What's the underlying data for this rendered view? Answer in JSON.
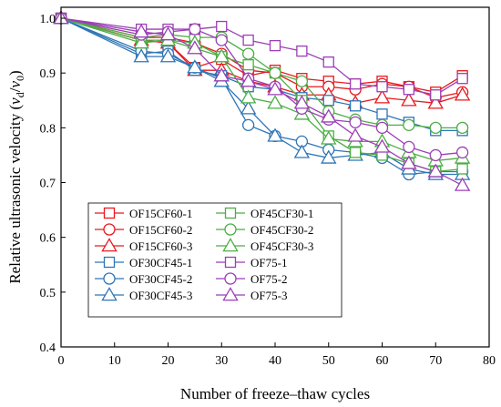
{
  "chart_data": {
    "type": "line",
    "xlabel": "Number of freeze–thaw cycles",
    "ylabel_parts": [
      "Relative ultrasonic velocity (",
      "v",
      "d",
      "/",
      "v",
      "0",
      ")"
    ],
    "xlim": [
      0,
      80
    ],
    "ylim": [
      0.4,
      1.02
    ],
    "xticks": [
      0,
      10,
      20,
      30,
      40,
      50,
      60,
      70,
      80
    ],
    "yticks": [
      0.4,
      0.5,
      0.6,
      0.7,
      0.8,
      0.9,
      1.0
    ],
    "ytick_labels": [
      "0.4",
      "0.5",
      "0.6",
      "0.7",
      "0.8",
      "0.9",
      "1.0"
    ],
    "grid": false,
    "legend_position": "bottom-left",
    "x": [
      0,
      15,
      20,
      25,
      30,
      35,
      40,
      45,
      50,
      55,
      60,
      65,
      70,
      75
    ],
    "series": [
      {
        "name": "OF15CF60-1",
        "color": "#e8191f",
        "marker": "square",
        "values": [
          1.0,
          0.96,
          0.955,
          0.91,
          0.925,
          0.895,
          0.905,
          0.89,
          0.885,
          0.88,
          0.885,
          0.875,
          0.865,
          0.895
        ]
      },
      {
        "name": "OF15CF60-2",
        "color": "#e8191f",
        "marker": "circle",
        "values": [
          1.0,
          0.965,
          0.965,
          0.955,
          0.935,
          0.905,
          0.9,
          0.875,
          0.875,
          0.87,
          0.88,
          0.875,
          0.855,
          0.865
        ]
      },
      {
        "name": "OF15CF60-3",
        "color": "#e8191f",
        "marker": "triangle",
        "values": [
          1.0,
          0.96,
          0.955,
          0.905,
          0.905,
          0.885,
          0.875,
          0.86,
          0.86,
          0.845,
          0.855,
          0.85,
          0.845,
          0.86
        ]
      },
      {
        "name": "OF30CF45-1",
        "color": "#2e75b6",
        "marker": "square",
        "values": [
          1.0,
          0.935,
          0.94,
          0.905,
          0.895,
          0.875,
          0.87,
          0.855,
          0.85,
          0.84,
          0.825,
          0.81,
          0.795,
          0.795
        ]
      },
      {
        "name": "OF30CF45-2",
        "color": "#2e75b6",
        "marker": "circle",
        "values": [
          1.0,
          0.94,
          0.935,
          0.91,
          0.89,
          0.805,
          0.785,
          0.775,
          0.76,
          0.755,
          0.745,
          0.715,
          0.72,
          0.72
        ]
      },
      {
        "name": "OF30CF45-3",
        "color": "#2e75b6",
        "marker": "triangle",
        "values": [
          1.0,
          0.93,
          0.93,
          0.91,
          0.885,
          0.835,
          0.785,
          0.755,
          0.745,
          0.75,
          0.755,
          0.725,
          0.715,
          0.715
        ]
      },
      {
        "name": "OF45CF30-1",
        "color": "#4cae45",
        "marker": "square",
        "values": [
          1.0,
          0.96,
          0.96,
          0.945,
          0.93,
          0.915,
          0.9,
          0.85,
          0.785,
          0.755,
          0.75,
          0.735,
          0.72,
          0.725
        ]
      },
      {
        "name": "OF45CF30-2",
        "color": "#4cae45",
        "marker": "circle",
        "values": [
          1.0,
          0.965,
          0.97,
          0.965,
          0.965,
          0.935,
          0.9,
          0.885,
          0.83,
          0.815,
          0.805,
          0.805,
          0.8,
          0.8
        ]
      },
      {
        "name": "OF45CF30-3",
        "color": "#4cae45",
        "marker": "triangle",
        "values": [
          1.0,
          0.955,
          0.96,
          0.955,
          0.93,
          0.855,
          0.845,
          0.825,
          0.78,
          0.775,
          0.775,
          0.755,
          0.74,
          0.745
        ]
      },
      {
        "name": "OF75-1",
        "color": "#9b3fb5",
        "marker": "square",
        "values": [
          1.0,
          0.98,
          0.98,
          0.98,
          0.985,
          0.96,
          0.95,
          0.94,
          0.92,
          0.88,
          0.875,
          0.87,
          0.86,
          0.89
        ]
      },
      {
        "name": "OF75-2",
        "color": "#9b3fb5",
        "marker": "circle",
        "values": [
          1.0,
          0.97,
          0.975,
          0.98,
          0.96,
          0.89,
          0.875,
          0.835,
          0.815,
          0.81,
          0.8,
          0.765,
          0.75,
          0.755
        ]
      },
      {
        "name": "OF75-3",
        "color": "#9b3fb5",
        "marker": "triangle",
        "values": [
          1.0,
          0.975,
          0.97,
          0.945,
          0.895,
          0.885,
          0.87,
          0.845,
          0.82,
          0.785,
          0.765,
          0.735,
          0.72,
          0.695
        ]
      }
    ]
  }
}
